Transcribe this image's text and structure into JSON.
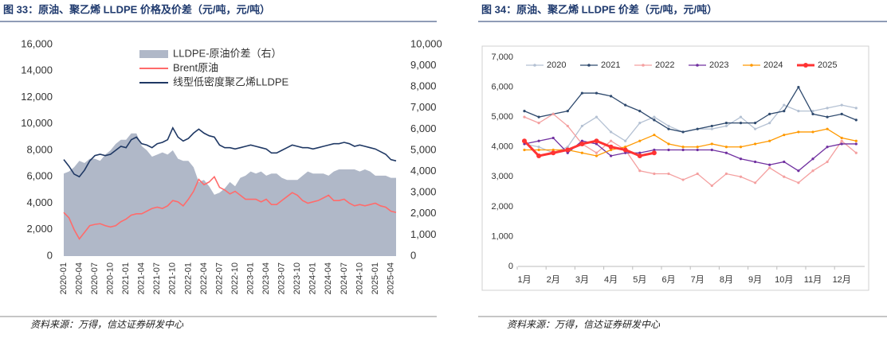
{
  "chart_data": [
    {
      "type": "dual-line-area",
      "title": "图 33：原油、聚乙烯 LLDPE 价格及价差（元/吨，元/吨）",
      "source": "资料来源：万得，信达证券研发中心",
      "x": [
        "2020-01",
        "2020-02",
        "2020-03",
        "2020-04",
        "2020-05",
        "2020-06",
        "2020-07",
        "2020-08",
        "2020-09",
        "2020-10",
        "2020-11",
        "2020-12",
        "2021-01",
        "2021-02",
        "2021-03",
        "2021-04",
        "2021-05",
        "2021-06",
        "2021-07",
        "2021-08",
        "2021-09",
        "2021-10",
        "2021-11",
        "2021-12",
        "2022-01",
        "2022-02",
        "2022-03",
        "2022-04",
        "2022-05",
        "2022-06",
        "2022-07",
        "2022-08",
        "2022-09",
        "2022-10",
        "2022-11",
        "2022-12",
        "2023-01",
        "2023-02",
        "2023-03",
        "2023-04",
        "2023-05",
        "2023-06",
        "2023-07",
        "2023-08",
        "2023-09",
        "2023-10",
        "2023-11",
        "2023-12",
        "2024-01",
        "2024-02",
        "2024-03",
        "2024-04",
        "2024-05",
        "2024-06",
        "2024-07",
        "2024-08",
        "2024-09",
        "2024-10",
        "2024-11",
        "2024-12",
        "2025-01",
        "2025-02",
        "2025-03",
        "2025-04",
        "2025-05"
      ],
      "xticks": [
        "2020-01",
        "2020-04",
        "2020-07",
        "2020-10",
        "2021-01",
        "2021-04",
        "2021-07",
        "2021-10",
        "2022-01",
        "2022-04",
        "2022-07",
        "2022-10",
        "2023-01",
        "2023-04",
        "2023-07",
        "2023-10",
        "2024-01",
        "2024-04",
        "2024-07",
        "2024-10",
        "2025-01",
        "2025-04"
      ],
      "series": [
        {
          "name": "LLDPE-原油价差（右）",
          "color": "#b0b8c8",
          "kind": "area",
          "axis": "y2",
          "values": [
            3900,
            4000,
            4200,
            4500,
            4400,
            4600,
            4600,
            4500,
            4800,
            5000,
            5300,
            5500,
            5500,
            5800,
            5800,
            5200,
            5000,
            4700,
            4800,
            4900,
            4800,
            5000,
            4600,
            4500,
            4500,
            4200,
            3500,
            3600,
            3300,
            2900,
            3000,
            3200,
            3500,
            3300,
            3700,
            3800,
            4000,
            3900,
            4000,
            3800,
            3900,
            3900,
            3700,
            3600,
            3600,
            3600,
            3800,
            4000,
            3900,
            3900,
            3900,
            3800,
            4000,
            4100,
            4100,
            4100,
            4100,
            4000,
            4100,
            4000,
            3800,
            3800,
            3800,
            3700,
            3700
          ]
        },
        {
          "name": "Brent原油",
          "color": "#ff6b6b",
          "kind": "line",
          "values": [
            3300,
            2900,
            2000,
            1300,
            1800,
            2300,
            2400,
            2450,
            2300,
            2200,
            2300,
            2600,
            2800,
            3100,
            3200,
            3200,
            3400,
            3600,
            3700,
            3600,
            3800,
            4200,
            4100,
            3800,
            4300,
            4900,
            5800,
            5400,
            5600,
            6000,
            5200,
            5000,
            4700,
            4900,
            4600,
            4300,
            4300,
            4300,
            4100,
            4300,
            3900,
            3900,
            4200,
            4500,
            4800,
            4600,
            4200,
            4000,
            4100,
            4200,
            4400,
            4600,
            4200,
            4200,
            4300,
            4000,
            3800,
            3900,
            3800,
            3900,
            4000,
            3800,
            3700,
            3400,
            3300
          ]
        },
        {
          "name": "线型低密度聚乙烯LLDPE",
          "color": "#1f3864",
          "kind": "line",
          "values": [
            7300,
            6800,
            6200,
            6000,
            6500,
            7200,
            7600,
            7700,
            7600,
            7700,
            8000,
            8300,
            8200,
            8800,
            9000,
            8500,
            8400,
            8200,
            8500,
            8600,
            8800,
            9700,
            9000,
            8700,
            8900,
            9300,
            9600,
            9300,
            9100,
            9000,
            8400,
            8200,
            8200,
            8100,
            8200,
            8300,
            8400,
            8300,
            8200,
            8100,
            7800,
            7800,
            8000,
            8200,
            8400,
            8300,
            8200,
            8200,
            8100,
            8200,
            8300,
            8400,
            8500,
            8500,
            8600,
            8500,
            8300,
            8400,
            8300,
            8200,
            8100,
            7900,
            7700,
            7300,
            7200
          ]
        }
      ],
      "ylim": [
        0,
        16000
      ],
      "yticks": [
        0,
        {
          "value": 2000,
          "label": "2,000"
        },
        {
          "value": 4000,
          "label": "4,000"
        },
        {
          "value": 6000,
          "label": "6,000"
        },
        {
          "value": 8000,
          "label": "8,000"
        },
        {
          "value": 10000,
          "label": "10,000"
        },
        {
          "value": 12000,
          "label": "12,000"
        },
        {
          "value": 14000,
          "label": "14,000"
        },
        {
          "value": 16000,
          "label": "16,000"
        }
      ],
      "y2lim": [
        0,
        10000
      ],
      "y2ticks": [
        0,
        {
          "value": 1000,
          "label": "1,000"
        },
        {
          "value": 2000,
          "label": "2,000"
        },
        {
          "value": 3000,
          "label": "3,000"
        },
        {
          "value": 4000,
          "label": "4,000"
        },
        {
          "value": 5000,
          "label": "5,000"
        },
        {
          "value": 6000,
          "label": "6,000"
        },
        {
          "value": 7000,
          "label": "7,000"
        },
        {
          "value": 8000,
          "label": "8,000"
        },
        {
          "value": 9000,
          "label": "9,000"
        },
        {
          "value": 10000,
          "label": "10,000"
        }
      ],
      "grid": false,
      "legend": "top"
    },
    {
      "type": "line",
      "title": "图 34：原油、聚乙烯 LLDPE 价差（元/吨，元/吨）",
      "source": "资料来源：万得，信达证券研发中心",
      "categories": [
        "1月",
        null,
        "2月",
        null,
        "3月",
        null,
        "4月",
        null,
        "5月",
        null,
        "6月",
        null,
        "7月",
        null,
        "8月",
        null,
        "9月",
        null,
        "10月",
        null,
        "11月",
        null,
        "12月",
        null
      ],
      "series": [
        {
          "name": "2020",
          "color": "#b4c1d3",
          "values": [
            4100,
            4000,
            3800,
            4000,
            4700,
            5000,
            4500,
            4200,
            4800,
            5000,
            4700,
            4500,
            4600,
            4600,
            4700,
            5000,
            4600,
            4800,
            5400,
            5200,
            5200,
            5300,
            5400,
            5300
          ]
        },
        {
          "name": "2021",
          "color": "#2f4a6e",
          "values": [
            5200,
            5000,
            5100,
            5200,
            5800,
            5800,
            5700,
            5400,
            5200,
            4900,
            4600,
            4500,
            4600,
            4700,
            4800,
            4800,
            4800,
            5100,
            5200,
            6000,
            5100,
            5000,
            5100,
            4900
          ]
        },
        {
          "name": "2022",
          "color": "#f4a0a0",
          "values": [
            5000,
            4800,
            5100,
            4700,
            4100,
            3800,
            4200,
            3900,
            3200,
            3100,
            3100,
            2900,
            3100,
            2700,
            3100,
            3000,
            2800,
            3300,
            3000,
            2800,
            3200,
            3500,
            4200,
            3800
          ]
        },
        {
          "name": "2023",
          "color": "#7030a0",
          "values": [
            4100,
            4200,
            4300,
            3800,
            4200,
            4100,
            3700,
            3800,
            3800,
            3900,
            3900,
            3900,
            3900,
            3900,
            3800,
            3600,
            3500,
            3400,
            3500,
            3200,
            3600,
            4000,
            4100,
            4100
          ]
        },
        {
          "name": "2024",
          "color": "#ff9900",
          "values": [
            3900,
            3900,
            3900,
            3900,
            3800,
            3700,
            3900,
            4000,
            4200,
            4400,
            4100,
            4000,
            4000,
            4100,
            4000,
            4000,
            4100,
            4200,
            4400,
            4500,
            4500,
            4600,
            4300,
            4200
          ]
        },
        {
          "name": "2025",
          "color": "#ff3333",
          "values": [
            4200,
            3700,
            3800,
            3900,
            4100,
            4200,
            4000,
            3900,
            3700,
            3800,
            null,
            null,
            null,
            null,
            null,
            null,
            null,
            null,
            null,
            null,
            null,
            null,
            null,
            null
          ]
        }
      ],
      "ylim": [
        0,
        7000
      ],
      "yticks": [
        0,
        {
          "value": 1000,
          "label": "1,000"
        },
        {
          "value": 2000,
          "label": "2,000"
        },
        {
          "value": 3000,
          "label": "3,000"
        },
        {
          "value": 4000,
          "label": "4,000"
        },
        {
          "value": 5000,
          "label": "5,000"
        },
        {
          "value": 6000,
          "label": "6,000"
        },
        {
          "value": 7000,
          "label": "7,000"
        }
      ],
      "grid": false,
      "legend": "top"
    }
  ]
}
